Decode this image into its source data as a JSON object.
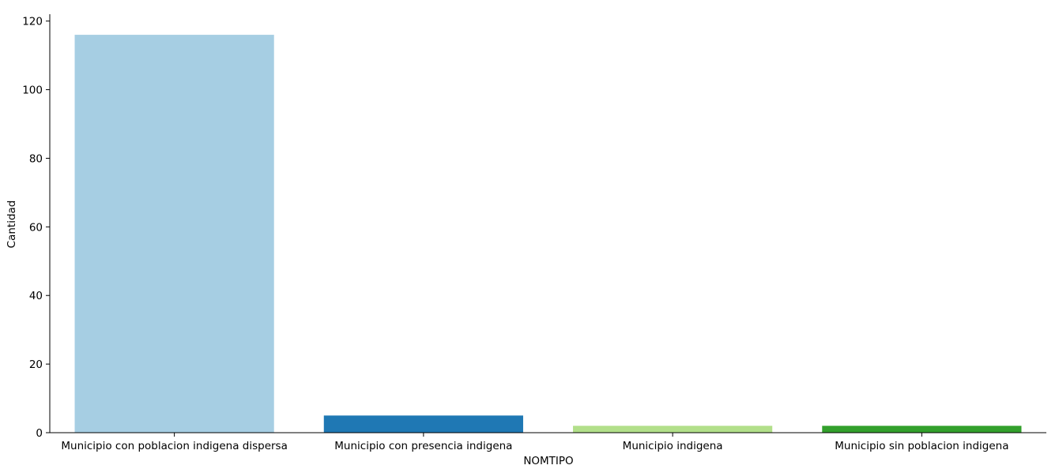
{
  "chart_data": {
    "type": "bar",
    "title": "",
    "xlabel": "NOMTIPO",
    "ylabel": "Cantidad",
    "categories": [
      "Municipio con poblacion indigena dispersa",
      "Municipio con presencia indigena",
      "Municipio indigena",
      "Municipio sin poblacion indigena"
    ],
    "values": [
      116,
      5,
      2,
      2
    ],
    "colors": [
      "#a6cee3",
      "#1f78b4",
      "#b2df8a",
      "#33a02c"
    ],
    "ylim": [
      0,
      122
    ],
    "yticks": [
      0,
      20,
      40,
      60,
      80,
      100,
      120
    ],
    "grid": false,
    "legend": "none"
  }
}
